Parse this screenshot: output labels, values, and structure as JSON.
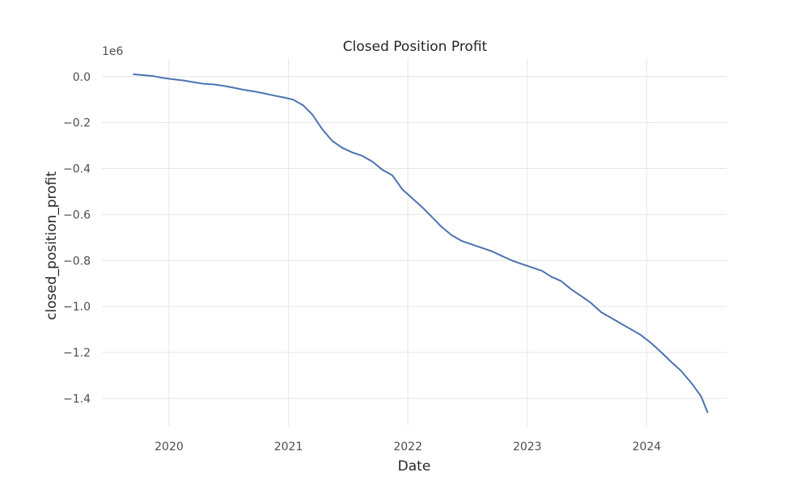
{
  "chart_data": {
    "type": "line",
    "title": "Closed Position Profit",
    "xlabel": "Date",
    "ylabel": "closed_position_profit",
    "y_offset_label": "1e6",
    "x_tick_labels": [
      "2020",
      "2021",
      "2022",
      "2023",
      "2024"
    ],
    "y_tick_labels": [
      "0.0",
      "−0.2",
      "−0.4",
      "−0.6",
      "−0.8",
      "−1.0",
      "−1.2",
      "−1.4"
    ],
    "y_ticks": [
      0.0,
      -0.2,
      -0.4,
      -0.6,
      -0.8,
      -1.0,
      -1.2,
      -1.4
    ],
    "xlim": [
      "2019-06-10",
      "2024-09-01"
    ],
    "ylim": [
      -1.52,
      0.08
    ],
    "grid": true,
    "series_color": "#4c72b0",
    "series": [
      {
        "x": [
          "2019-09-15",
          "2019-10-15",
          "2019-11-15",
          "2019-12-15",
          "2020-01-15",
          "2020-02-15",
          "2020-03-15",
          "2020-04-15",
          "2020-05-15",
          "2020-06-15",
          "2020-07-15",
          "2020-08-15",
          "2020-09-15",
          "2020-10-15",
          "2020-11-15",
          "2020-12-15",
          "2021-01-15",
          "2021-02-15",
          "2021-03-15",
          "2021-04-15",
          "2021-05-15",
          "2021-06-15",
          "2021-07-15",
          "2021-08-15",
          "2021-09-15",
          "2021-10-15",
          "2021-11-15",
          "2021-12-15",
          "2022-01-15",
          "2022-02-15",
          "2022-03-15",
          "2022-04-15",
          "2022-05-15",
          "2022-06-15",
          "2022-07-15",
          "2022-08-15",
          "2022-09-15",
          "2022-10-15",
          "2022-11-15",
          "2022-12-15",
          "2023-01-15",
          "2023-02-15",
          "2023-03-15",
          "2023-04-15",
          "2023-05-15",
          "2023-06-15",
          "2023-07-15",
          "2023-08-15",
          "2023-09-15",
          "2023-10-15",
          "2023-11-15",
          "2023-12-15",
          "2024-01-15",
          "2024-02-15",
          "2024-03-15",
          "2024-04-15",
          "2024-05-15",
          "2024-06-15",
          "2024-07-05"
        ],
        "y": [
          0.01,
          0.006,
          0.002,
          -0.006,
          -0.012,
          -0.017,
          -0.024,
          -0.031,
          -0.034,
          -0.04,
          -0.048,
          -0.057,
          -0.064,
          -0.072,
          -0.082,
          -0.09,
          -0.1,
          -0.125,
          -0.165,
          -0.23,
          -0.28,
          -0.31,
          -0.33,
          -0.345,
          -0.37,
          -0.405,
          -0.43,
          -0.49,
          -0.53,
          -0.57,
          -0.61,
          -0.655,
          -0.69,
          -0.715,
          -0.73,
          -0.745,
          -0.76,
          -0.78,
          -0.8,
          -0.815,
          -0.83,
          -0.845,
          -0.87,
          -0.89,
          -0.925,
          -0.955,
          -0.985,
          -1.025,
          -1.05,
          -1.075,
          -1.1,
          -1.125,
          -1.16,
          -1.2,
          -1.24,
          -1.28,
          -1.33,
          -1.39,
          -1.46
        ]
      }
    ]
  }
}
